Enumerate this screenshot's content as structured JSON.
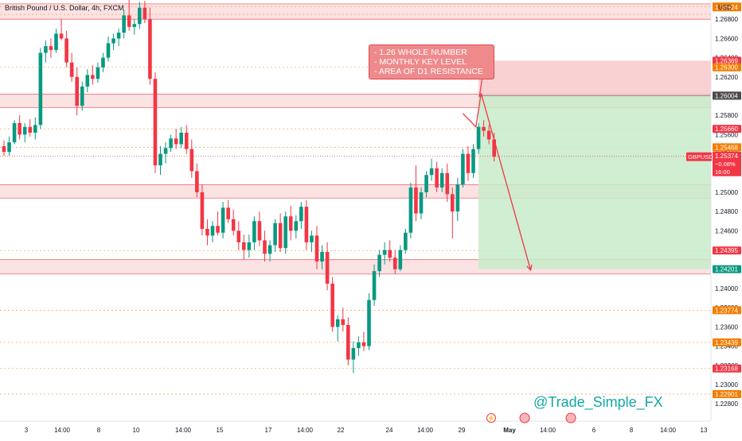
{
  "header": {
    "title": "British Pound / U.S. Dollar, 4h, FXCM",
    "currency": "USD"
  },
  "annotation": {
    "lines": [
      "- 1.26 WHOLE NUMBER",
      "- MONTHLY KEY LEVEL",
      "- AREA OF D1 RESISTANCE"
    ]
  },
  "watermark": "@Trade_Simple_FX",
  "colors": {
    "bull": "#089981",
    "bear": "#f23645",
    "zone": "#f7c5c7",
    "target": "#c8ebc9",
    "stop": "#f9c6c8",
    "price_label": "#f23645",
    "level_label": "#f57c00",
    "watermark": "#12a9a5"
  },
  "chart_data": {
    "type": "candlestick",
    "symbol": "GBPUSD",
    "timeframe": "4h",
    "ylim": [
      1.2262,
      1.27
    ],
    "yticks": [
      "1.22800",
      "1.23000",
      "1.23200",
      "1.23400",
      "1.23600",
      "1.23800",
      "1.24000",
      "1.24200",
      "1.24400",
      "1.24600",
      "1.24800",
      "1.25000",
      "1.25200",
      "1.25400",
      "1.25600",
      "1.25800",
      "1.26000",
      "1.26200",
      "1.26400",
      "1.26600",
      "1.26800"
    ],
    "xticks": [
      "3",
      "14:00",
      "8",
      "10",
      "14:00",
      "15",
      "17",
      "14:00",
      "22",
      "24",
      "14:00",
      "29",
      "May",
      "14:00",
      "6",
      "8",
      "14:00",
      "13"
    ],
    "level_labels": [
      {
        "value": 1.26932,
        "text": "1.26932",
        "style": "orange"
      },
      {
        "value": 1.26924,
        "text": "1.26924",
        "style": "orange"
      },
      {
        "value": 1.26369,
        "text": "1.26369",
        "style": "red"
      },
      {
        "value": 1.263,
        "text": "1.26300",
        "style": "orange"
      },
      {
        "value": 1.26006,
        "text": "1.26006",
        "style": "red"
      },
      {
        "value": 1.26004,
        "text": "1.26004",
        "style": "dark"
      },
      {
        "value": 1.2566,
        "text": "1.25660",
        "style": "red"
      },
      {
        "value": 1.25468,
        "text": "1.25468",
        "style": "orange"
      },
      {
        "value": 1.24395,
        "text": "1.24395",
        "style": "red"
      },
      {
        "value": 1.24201,
        "text": "1.24201",
        "style": "green"
      },
      {
        "value": 1.23774,
        "text": "1.23774",
        "style": "orange"
      },
      {
        "value": 1.23439,
        "text": "1.23439",
        "style": "orange"
      },
      {
        "value": 1.23168,
        "text": "1.23168",
        "style": "red"
      },
      {
        "value": 1.22901,
        "text": "1.22901",
        "style": "orange"
      }
    ],
    "current": {
      "symbol": "GBPUSD",
      "price": "1.25374",
      "change": "−0.08%",
      "countdown": "16:00",
      "value": 1.25374
    },
    "zones": [
      {
        "from": 1.268,
        "to": 1.2696
      },
      {
        "from": 1.2588,
        "to": 1.2602
      },
      {
        "from": 1.2494,
        "to": 1.2508
      },
      {
        "from": 1.2415,
        "to": 1.243
      }
    ],
    "dashed_levels": [
      1.26932,
      1.2685,
      1.263,
      1.2566,
      1.25468,
      1.24395,
      1.23774,
      1.23439,
      1.23168,
      1.22901
    ],
    "position": {
      "entry": 1.26006,
      "stop": 1.26369,
      "target": 1.24201,
      "start_index": 91,
      "end_index": 140
    },
    "projection": [
      {
        "i": 88,
        "v": 1.2582
      },
      {
        "i": 90.5,
        "v": 1.2568
      },
      {
        "i": 91.5,
        "v": 1.2603
      },
      {
        "i": 101,
        "v": 1.2419
      }
    ],
    "candles": [
      [
        1.2548,
        1.2554,
        1.2538,
        1.2542
      ],
      [
        1.2542,
        1.2558,
        1.2538,
        1.2552
      ],
      [
        1.2552,
        1.2575,
        1.255,
        1.2572
      ],
      [
        1.2572,
        1.258,
        1.2555,
        1.256
      ],
      [
        1.256,
        1.2572,
        1.2552,
        1.2568
      ],
      [
        1.2568,
        1.2576,
        1.2558,
        1.2562
      ],
      [
        1.2562,
        1.2578,
        1.2555,
        1.257
      ],
      [
        1.257,
        1.265,
        1.2566,
        1.2645
      ],
      [
        1.2645,
        1.2658,
        1.2635,
        1.2652
      ],
      [
        1.2652,
        1.266,
        1.264,
        1.2648
      ],
      [
        1.2648,
        1.267,
        1.2645,
        1.2665
      ],
      [
        1.2665,
        1.268,
        1.2658,
        1.266
      ],
      [
        1.266,
        1.2668,
        1.263,
        1.2635
      ],
      [
        1.2635,
        1.2645,
        1.2615,
        1.262
      ],
      [
        1.262,
        1.263,
        1.258,
        1.259
      ],
      [
        1.259,
        1.2615,
        1.2585,
        1.261
      ],
      [
        1.261,
        1.2628,
        1.2604,
        1.2622
      ],
      [
        1.2622,
        1.2632,
        1.2612,
        1.2618
      ],
      [
        1.2618,
        1.2635,
        1.2614,
        1.263
      ],
      [
        1.263,
        1.2645,
        1.2625,
        1.264
      ],
      [
        1.264,
        1.2662,
        1.2636,
        1.2655
      ],
      [
        1.2655,
        1.2665,
        1.2648,
        1.266
      ],
      [
        1.266,
        1.267,
        1.2652,
        1.2666
      ],
      [
        1.2666,
        1.269,
        1.266,
        1.2684
      ],
      [
        1.2684,
        1.2702,
        1.2668,
        1.2672
      ],
      [
        1.2672,
        1.268,
        1.2664,
        1.2675
      ],
      [
        1.2675,
        1.2698,
        1.267,
        1.2692
      ],
      [
        1.2692,
        1.2699,
        1.2676,
        1.268
      ],
      [
        1.268,
        1.2692,
        1.2612,
        1.2618
      ],
      [
        1.2618,
        1.2625,
        1.252,
        1.2528
      ],
      [
        1.2528,
        1.2548,
        1.2518,
        1.254
      ],
      [
        1.254,
        1.2552,
        1.253,
        1.2546
      ],
      [
        1.2546,
        1.256,
        1.2542,
        1.2556
      ],
      [
        1.2556,
        1.2566,
        1.2545,
        1.255
      ],
      [
        1.255,
        1.2568,
        1.2546,
        1.2562
      ],
      [
        1.2562,
        1.257,
        1.254,
        1.2545
      ],
      [
        1.2545,
        1.2555,
        1.2515,
        1.2522
      ],
      [
        1.2522,
        1.253,
        1.2495,
        1.25
      ],
      [
        1.25,
        1.2508,
        1.2455,
        1.2462
      ],
      [
        1.2462,
        1.2472,
        1.2445,
        1.2455
      ],
      [
        1.2455,
        1.247,
        1.2448,
        1.2465
      ],
      [
        1.2465,
        1.248,
        1.2455,
        1.2458
      ],
      [
        1.2458,
        1.249,
        1.2452,
        1.2484
      ],
      [
        1.2484,
        1.2492,
        1.2468,
        1.2472
      ],
      [
        1.2472,
        1.2482,
        1.2455,
        1.246
      ],
      [
        1.246,
        1.247,
        1.244,
        1.2448
      ],
      [
        1.2448,
        1.2456,
        1.243,
        1.244
      ],
      [
        1.244,
        1.2456,
        1.2432,
        1.2448
      ],
      [
        1.2448,
        1.2475,
        1.244,
        1.247
      ],
      [
        1.247,
        1.248,
        1.2444,
        1.245
      ],
      [
        1.245,
        1.246,
        1.2428,
        1.2436
      ],
      [
        1.2436,
        1.245,
        1.2428,
        1.2445
      ],
      [
        1.2445,
        1.2472,
        1.2438,
        1.2468
      ],
      [
        1.2468,
        1.2478,
        1.2438,
        1.2442
      ],
      [
        1.2442,
        1.248,
        1.2436,
        1.2475
      ],
      [
        1.2475,
        1.2486,
        1.245,
        1.246
      ],
      [
        1.246,
        1.2476,
        1.2452,
        1.247
      ],
      [
        1.247,
        1.249,
        1.2462,
        1.2485
      ],
      [
        1.2485,
        1.2492,
        1.244,
        1.2448
      ],
      [
        1.2448,
        1.246,
        1.2438,
        1.2455
      ],
      [
        1.2455,
        1.2465,
        1.242,
        1.2428
      ],
      [
        1.2428,
        1.2445,
        1.242,
        1.2438
      ],
      [
        1.2438,
        1.2448,
        1.2398,
        1.2405
      ],
      [
        1.2405,
        1.2412,
        1.2355,
        1.236
      ],
      [
        1.236,
        1.2372,
        1.2345,
        1.2368
      ],
      [
        1.2368,
        1.238,
        1.2355,
        1.2362
      ],
      [
        1.2362,
        1.237,
        1.232,
        1.2326
      ],
      [
        1.2326,
        1.2345,
        1.2312,
        1.2338
      ],
      [
        1.2338,
        1.235,
        1.233,
        1.2344
      ],
      [
        1.2344,
        1.2355,
        1.2335,
        1.234
      ],
      [
        1.234,
        1.2395,
        1.2336,
        1.2388
      ],
      [
        1.2388,
        1.2425,
        1.2382,
        1.2418
      ],
      [
        1.2418,
        1.244,
        1.2412,
        1.2435
      ],
      [
        1.2435,
        1.2448,
        1.2425,
        1.244
      ],
      [
        1.244,
        1.245,
        1.2428,
        1.2432
      ],
      [
        1.2432,
        1.244,
        1.2415,
        1.242
      ],
      [
        1.242,
        1.2445,
        1.2418,
        1.244
      ],
      [
        1.244,
        1.2462,
        1.2436,
        1.2458
      ],
      [
        1.2458,
        1.251,
        1.2452,
        1.2505
      ],
      [
        1.2505,
        1.2528,
        1.247,
        1.2478
      ],
      [
        1.2478,
        1.2505,
        1.2472,
        1.25
      ],
      [
        1.25,
        1.2522,
        1.2495,
        1.2518
      ],
      [
        1.2518,
        1.2535,
        1.2512,
        1.2525
      ],
      [
        1.2525,
        1.2532,
        1.25,
        1.2505
      ],
      [
        1.2505,
        1.2525,
        1.25,
        1.252
      ],
      [
        1.252,
        1.253,
        1.249,
        1.2498
      ],
      [
        1.2498,
        1.2505,
        1.2452,
        1.248
      ],
      [
        1.248,
        1.2515,
        1.247,
        1.2508
      ],
      [
        1.2508,
        1.2545,
        1.2505,
        1.254
      ],
      [
        1.254,
        1.2548,
        1.2512,
        1.252
      ],
      [
        1.252,
        1.255,
        1.2515,
        1.2545
      ],
      [
        1.2545,
        1.2572,
        1.254,
        1.2568
      ],
      [
        1.2568,
        1.2575,
        1.2558,
        1.2564
      ],
      [
        1.2564,
        1.257,
        1.255,
        1.2555
      ],
      [
        1.2555,
        1.2562,
        1.2532,
        1.2537
      ]
    ]
  }
}
